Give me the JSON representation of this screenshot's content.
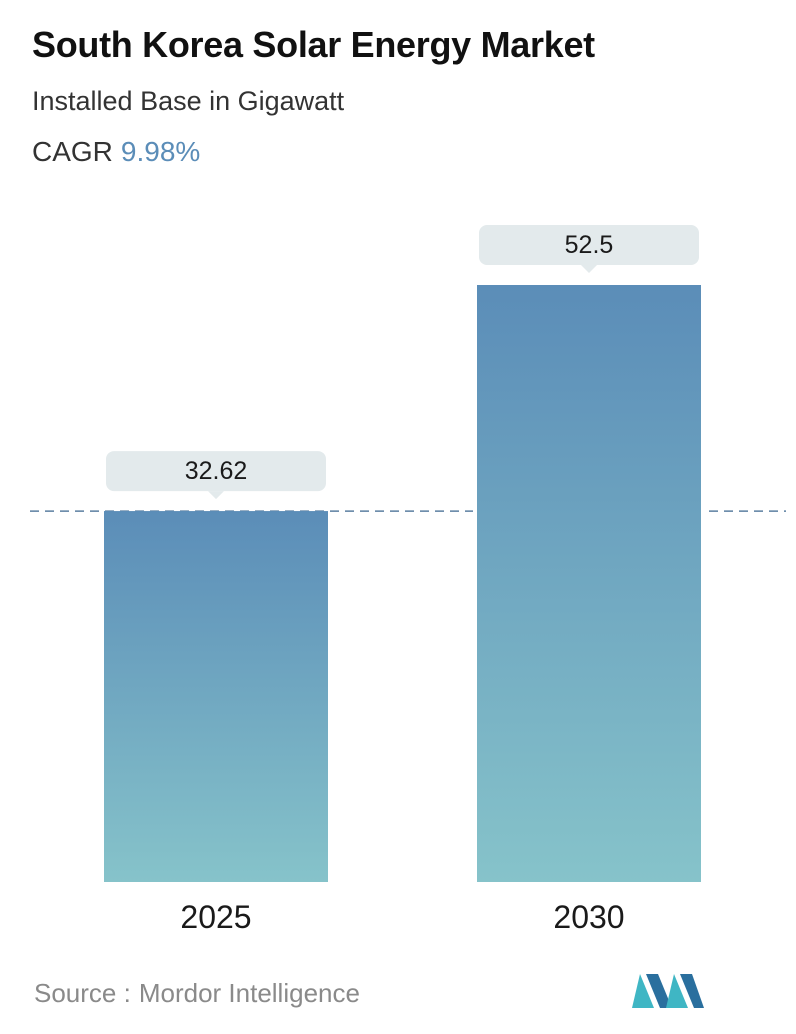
{
  "header": {
    "title": "South Korea Solar Energy Market",
    "subtitle": "Installed Base in Gigawatt",
    "cagr_label": "CAGR",
    "cagr_value": "9.98%"
  },
  "footer": {
    "source_label": "Source :",
    "source_name": "Mordor Intelligence",
    "logo_icon": "mordor-intelligence-logo-icon"
  },
  "colors": {
    "bar_top": "#5b8db8",
    "bar_bottom": "#86c3ca",
    "label_box": "#e3eaec",
    "reference_line": "#5b7fa0",
    "cagr_accent": "#5b8db8"
  },
  "chart_data": {
    "type": "bar",
    "categories": [
      "2025",
      "2030"
    ],
    "values": [
      32.62,
      52.5
    ],
    "value_labels": [
      "32.62",
      "52.5"
    ],
    "title": "South Korea Solar Energy Market",
    "subtitle": "Installed Base in Gigawatt",
    "ylabel": "",
    "xlabel": "",
    "ylim": [
      0,
      52.5
    ],
    "grid": false,
    "reference_line": "dashed line at the 2025 value",
    "legend": "none"
  }
}
